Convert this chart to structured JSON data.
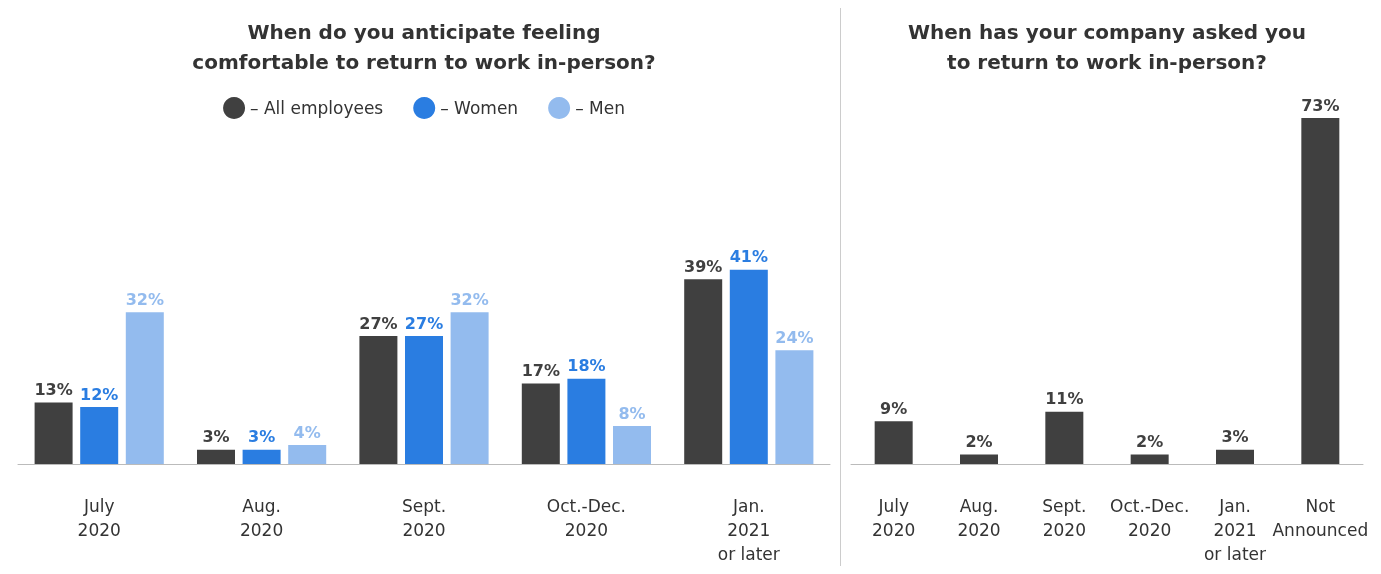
{
  "chart_data": [
    {
      "type": "bar",
      "title": "When do you anticipate feeling\ncomfortable to return to work in-person?",
      "categories": [
        "July\n2020",
        "Aug.\n2020",
        "Sept.\n2020",
        "Oct.-Dec.\n2020",
        "Jan.\n2021\nor later"
      ],
      "series": [
        {
          "name": "– All employees",
          "color": "#404040",
          "values": [
            13,
            3,
            27,
            17,
            39
          ],
          "value_labels": [
            "13%",
            "3%",
            "27%",
            "17%",
            "39%"
          ]
        },
        {
          "name": "– Women",
          "color": "#2a7de1",
          "values": [
            12,
            3,
            27,
            18,
            41
          ],
          "value_labels": [
            "12%",
            "3%",
            "27%",
            "18%",
            "41%"
          ]
        },
        {
          "name": "– Men",
          "color": "#93bbee",
          "values": [
            32,
            4,
            32,
            8,
            24
          ],
          "value_labels": [
            "32%",
            "4%",
            "32%",
            "8%",
            "24%"
          ]
        }
      ],
      "legend": "top",
      "grid": false
    },
    {
      "type": "bar",
      "title": "When has your company asked you\nto return to work in-person?",
      "categories": [
        "July\n2020",
        "Aug.\n2020",
        "Sept.\n2020",
        "Oct.-Dec.\n2020",
        "Jan.\n2021\nor later",
        "Not\nAnnounced"
      ],
      "series": [
        {
          "color": "#404040",
          "values": [
            9,
            2,
            11,
            2,
            3,
            73
          ],
          "value_labels": [
            "9%",
            "2%",
            "11%",
            "2%",
            "3%",
            "73%"
          ]
        }
      ],
      "grid": false
    }
  ]
}
